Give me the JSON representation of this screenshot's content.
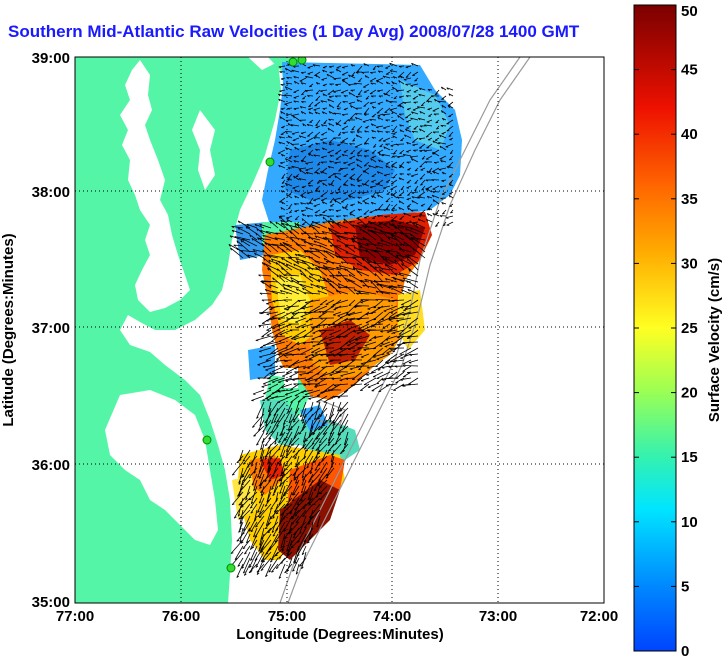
{
  "title": "Southern Mid-Atlantic Raw Velocities (1 Day Avg) 2008/07/28 1400 GMT",
  "map": {
    "xlabel": "Longitude (Degrees:Minutes)",
    "ylabel": "Latitude (Degrees:Minutes)",
    "x_ticks": [
      "77:00",
      "76:00",
      "75:00",
      "74:00",
      "73:00",
      "72:00"
    ],
    "y_ticks": [
      "39:00",
      "38:00",
      "37:00",
      "36:00",
      "35:00"
    ]
  },
  "colorbar": {
    "label": "Surface Velocity (cm/s)",
    "ticks": [
      "0",
      "5",
      "10",
      "15",
      "20",
      "25",
      "30",
      "35",
      "40",
      "45",
      "50"
    ],
    "range": [
      0,
      50
    ]
  },
  "colors": {
    "land": "#55f5a8",
    "title": "#1a1aff"
  }
}
